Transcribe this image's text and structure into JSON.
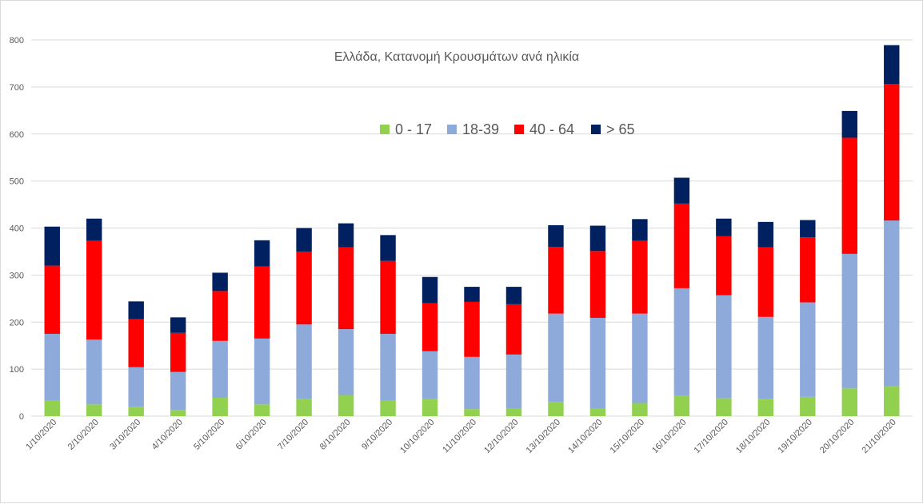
{
  "chart_data": {
    "type": "bar",
    "stacked": true,
    "title": "Ελλάδα, Κατανομή Κρουσμάτων ανά ηλικία",
    "xlabel": "",
    "ylabel": "",
    "ylim": [
      0,
      800
    ],
    "yticks": [
      "0",
      "100",
      "200",
      "300",
      "400",
      "500",
      "600",
      "700",
      "800"
    ],
    "ytick_values": [
      0,
      100,
      200,
      300,
      400,
      500,
      600,
      700,
      800
    ],
    "grid": true,
    "legend_position": "top-center",
    "categories": [
      "1/10/2020",
      "2/10/2020",
      "3/10/2020",
      "4/10/2020",
      "5/10/2020",
      "6/10/2020",
      "7/10/2020",
      "8/10/2020",
      "9/10/2020",
      "10/10/2020",
      "11/10/2020",
      "12/10/2020",
      "13/10/2020",
      "14/10/2020",
      "15/10/2020",
      "16/10/2020",
      "17/10/2020",
      "18/10/2020",
      "19/10/2020",
      "20/10/2020",
      "21/10/2020"
    ],
    "series": [
      {
        "name": "0 - 17",
        "color": "#92d050",
        "values": [
          33,
          25,
          20,
          13,
          39,
          25,
          37,
          45,
          33,
          37,
          15,
          16,
          30,
          16,
          28,
          44,
          38,
          37,
          41,
          59,
          63
        ]
      },
      {
        "name": "18-39",
        "color": "#8eaadb",
        "values": [
          142,
          138,
          84,
          81,
          121,
          140,
          158,
          140,
          142,
          101,
          111,
          115,
          188,
          193,
          190,
          228,
          219,
          174,
          201,
          286,
          353
        ]
      },
      {
        "name": "40 - 64",
        "color": "#ff0000",
        "values": [
          145,
          210,
          102,
          83,
          106,
          153,
          155,
          174,
          155,
          102,
          117,
          107,
          142,
          142,
          155,
          180,
          126,
          148,
          138,
          247,
          290
        ]
      },
      {
        "name": "> 65",
        "color": "#002060",
        "values": [
          83,
          47,
          38,
          33,
          39,
          56,
          50,
          51,
          55,
          56,
          32,
          37,
          46,
          54,
          46,
          55,
          37,
          54,
          37,
          57,
          83
        ]
      }
    ]
  }
}
